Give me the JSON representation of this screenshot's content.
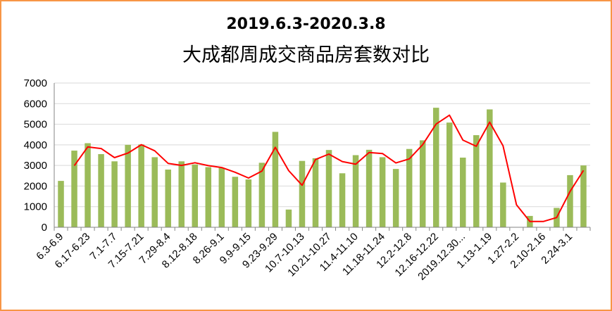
{
  "colors": {
    "border": "#f79646",
    "bar": "#9bbb59",
    "line": "#ff0000",
    "grid": "#d9d9d9"
  },
  "chart_data": {
    "type": "bar",
    "title": "2019.6.3-2020.3.8",
    "subtitle": "大成都周成交商品房套数对比",
    "xlabel": "",
    "ylabel": "",
    "ylim": [
      0,
      7000
    ],
    "yticks": [
      0,
      1000,
      2000,
      3000,
      4000,
      5000,
      6000,
      7000
    ],
    "grid": true,
    "legend": "none",
    "tick_labels": [
      "6.3-6.9",
      "6.17-6.23",
      "7.1-7.7",
      "7.15-7.21",
      "7.29-8.4",
      "8.12-8.18",
      "8.26-9.1",
      "9.9-9.15",
      "9.23-9.29",
      "10.7-10.13",
      "10.21-10.27",
      "11.4-11.10",
      "11.18-11.24",
      "12.2-12.8",
      "12.16-12.22",
      "2019.12.30...",
      "1.13-1.19",
      "1.27-2.2",
      "2.10-2.16",
      "2.24-3.1"
    ],
    "tick_every": 2,
    "series": [
      {
        "kind": "bar",
        "values": [
          2250,
          3720,
          4080,
          3550,
          3200,
          4000,
          4020,
          3400,
          2800,
          3200,
          3050,
          2920,
          2880,
          2450,
          2320,
          3130,
          4630,
          860,
          3220,
          3350,
          3750,
          2620,
          3500,
          3760,
          3400,
          2830,
          3800,
          4220,
          5800,
          5080,
          3380,
          4470,
          5720,
          2170,
          0,
          550,
          0,
          940,
          2530,
          3000
        ]
      },
      {
        "kind": "line",
        "start_index": 1,
        "values": [
          2990,
          3900,
          3820,
          3380,
          3600,
          4010,
          3710,
          3100,
          3000,
          3130,
          2990,
          2900,
          2670,
          2390,
          2730,
          3880,
          2750,
          2040,
          3290,
          3550,
          3190,
          3060,
          3630,
          3580,
          3120,
          3320,
          4010,
          5010,
          5440,
          4230,
          3930,
          5100,
          3950,
          1090,
          280,
          280,
          470,
          1740,
          2760
        ]
      }
    ]
  }
}
